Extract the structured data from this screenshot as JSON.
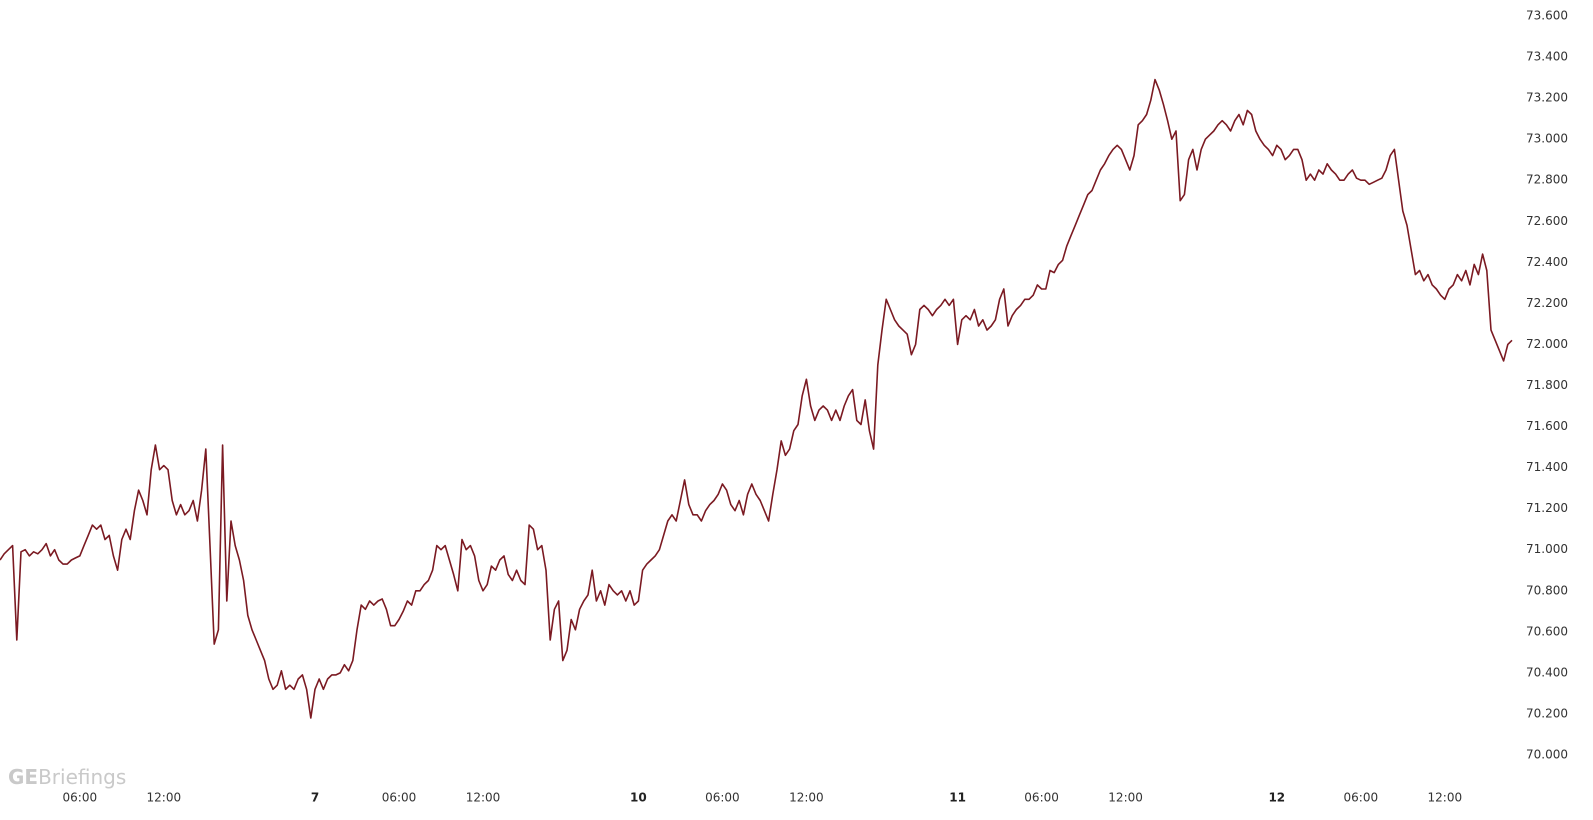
{
  "watermark": {
    "bold": "GE",
    "rest": "Briefings"
  },
  "chart_data": {
    "type": "line",
    "color": "#7b1a22",
    "grid": false,
    "ylim": [
      70,
      73.6
    ],
    "yticks": [
      {
        "value": 70,
        "label": "70.000"
      },
      {
        "value": 70.2,
        "label": "70.200"
      },
      {
        "value": 70.4,
        "label": "70.400"
      },
      {
        "value": 70.6,
        "label": "70.600"
      },
      {
        "value": 70.8,
        "label": "70.800"
      },
      {
        "value": 71,
        "label": "71.000"
      },
      {
        "value": 71.2,
        "label": "71.200"
      },
      {
        "value": 71.4,
        "label": "71.400"
      },
      {
        "value": 71.6,
        "label": "71.600"
      },
      {
        "value": 71.8,
        "label": "71.800"
      },
      {
        "value": 72,
        "label": "72.000"
      },
      {
        "value": 72.2,
        "label": "72.200"
      },
      {
        "value": 72.4,
        "label": "72.400"
      },
      {
        "value": 72.6,
        "label": "72.600"
      },
      {
        "value": 72.8,
        "label": "72.800"
      },
      {
        "value": 73,
        "label": "73.000"
      },
      {
        "value": 73.2,
        "label": "73.200"
      },
      {
        "value": 73.4,
        "label": "73.400"
      },
      {
        "value": 73.6,
        "label": "73.600"
      }
    ],
    "categories": [
      null,
      null,
      null,
      null,
      null,
      null,
      null,
      null,
      null,
      null,
      null,
      null,
      null,
      null,
      null,
      null,
      null,
      null,
      null,
      "06:00",
      null,
      null,
      null,
      null,
      null,
      null,
      null,
      null,
      null,
      null,
      null,
      null,
      null,
      null,
      null,
      null,
      null,
      null,
      null,
      "12:00",
      null,
      null,
      null,
      null,
      null,
      null,
      null,
      null,
      null,
      null,
      null,
      null,
      null,
      null,
      null,
      null,
      null,
      null,
      null,
      null,
      null,
      null,
      null,
      null,
      null,
      null,
      null,
      null,
      null,
      null,
      null,
      null,
      null,
      null,
      null,
      "7",
      null,
      null,
      null,
      null,
      null,
      null,
      null,
      null,
      null,
      null,
      null,
      null,
      null,
      null,
      null,
      null,
      null,
      null,
      null,
      "06:00",
      null,
      null,
      null,
      null,
      null,
      null,
      null,
      null,
      null,
      null,
      null,
      null,
      null,
      null,
      null,
      null,
      null,
      null,
      null,
      "12:00",
      null,
      null,
      null,
      null,
      null,
      null,
      null,
      null,
      null,
      null,
      null,
      null,
      null,
      null,
      null,
      null,
      null,
      null,
      null,
      null,
      null,
      null,
      null,
      null,
      null,
      null,
      null,
      null,
      null,
      null,
      null,
      null,
      null,
      null,
      null,
      null,
      "10",
      null,
      null,
      null,
      null,
      null,
      null,
      null,
      null,
      null,
      null,
      null,
      null,
      null,
      null,
      null,
      null,
      null,
      null,
      null,
      "06:00",
      null,
      null,
      null,
      null,
      null,
      null,
      null,
      null,
      null,
      null,
      null,
      null,
      null,
      null,
      null,
      null,
      null,
      null,
      null,
      "12:00",
      null,
      null,
      null,
      null,
      null,
      null,
      null,
      null,
      null,
      null,
      null,
      null,
      null,
      null,
      null,
      null,
      null,
      null,
      null,
      null,
      null,
      null,
      null,
      null,
      null,
      null,
      null,
      null,
      null,
      null,
      null,
      null,
      null,
      null,
      null,
      "11",
      null,
      null,
      null,
      null,
      null,
      null,
      null,
      null,
      null,
      null,
      null,
      null,
      null,
      null,
      null,
      null,
      null,
      null,
      null,
      "06:00",
      null,
      null,
      null,
      null,
      null,
      null,
      null,
      null,
      null,
      null,
      null,
      null,
      null,
      null,
      null,
      null,
      null,
      null,
      null,
      "12:00",
      null,
      null,
      null,
      null,
      null,
      null,
      null,
      null,
      null,
      null,
      null,
      null,
      null,
      null,
      null,
      null,
      null,
      null,
      null,
      null,
      null,
      null,
      null,
      null,
      null,
      null,
      null,
      null,
      null,
      null,
      null,
      null,
      null,
      null,
      null,
      "12",
      null,
      null,
      null,
      null,
      null,
      null,
      null,
      null,
      null,
      null,
      null,
      null,
      null,
      null,
      null,
      null,
      null,
      null,
      null,
      "06:00",
      null,
      null,
      null,
      null,
      null,
      null,
      null,
      null,
      null,
      null,
      null,
      null,
      null,
      null,
      null,
      null,
      null,
      null,
      null,
      "12:00",
      null,
      null,
      null,
      null,
      null,
      null,
      null,
      null,
      null,
      null,
      null,
      null,
      null,
      null,
      null,
      null
    ],
    "values": [
      70.95,
      70.98,
      71.0,
      71.02,
      70.56,
      70.99,
      71.0,
      70.97,
      70.99,
      70.98,
      71.0,
      71.03,
      70.97,
      71.0,
      70.95,
      70.93,
      70.93,
      70.95,
      70.96,
      70.97,
      71.02,
      71.07,
      71.12,
      71.1,
      71.12,
      71.05,
      71.07,
      70.97,
      70.9,
      71.05,
      71.1,
      71.05,
      71.19,
      71.29,
      71.24,
      71.17,
      71.39,
      71.51,
      71.39,
      71.41,
      71.39,
      71.24,
      71.17,
      71.22,
      71.17,
      71.19,
      71.24,
      71.14,
      71.29,
      71.49,
      71.02,
      70.54,
      70.61,
      71.51,
      70.75,
      71.14,
      71.02,
      70.95,
      70.85,
      70.68,
      70.61,
      70.56,
      70.51,
      70.46,
      70.37,
      70.32,
      70.34,
      70.41,
      70.32,
      70.34,
      70.32,
      70.37,
      70.39,
      70.32,
      70.18,
      70.32,
      70.37,
      70.32,
      70.37,
      70.39,
      70.39,
      70.4,
      70.44,
      70.41,
      70.46,
      70.61,
      70.73,
      70.71,
      70.75,
      70.73,
      70.75,
      70.76,
      70.71,
      70.63,
      70.63,
      70.66,
      70.7,
      70.75,
      70.73,
      70.8,
      70.8,
      70.83,
      70.85,
      70.9,
      71.02,
      71.0,
      71.02,
      70.95,
      70.88,
      70.8,
      71.05,
      71.0,
      71.02,
      70.97,
      70.85,
      70.8,
      70.83,
      70.92,
      70.9,
      70.95,
      70.97,
      70.88,
      70.85,
      70.9,
      70.85,
      70.83,
      71.12,
      71.1,
      71.0,
      71.02,
      70.9,
      70.56,
      70.71,
      70.75,
      70.46,
      70.51,
      70.66,
      70.61,
      70.71,
      70.75,
      70.78,
      70.9,
      70.75,
      70.8,
      70.73,
      70.83,
      70.8,
      70.78,
      70.8,
      70.75,
      70.8,
      70.73,
      70.75,
      70.9,
      70.93,
      70.95,
      70.97,
      71.0,
      71.07,
      71.14,
      71.17,
      71.14,
      71.24,
      71.34,
      71.22,
      71.17,
      71.17,
      71.14,
      71.19,
      71.22,
      71.24,
      71.27,
      71.32,
      71.29,
      71.22,
      71.19,
      71.24,
      71.17,
      71.27,
      71.32,
      71.27,
      71.24,
      71.19,
      71.14,
      71.27,
      71.39,
      71.53,
      71.46,
      71.49,
      71.58,
      71.61,
      71.75,
      71.83,
      71.7,
      71.63,
      71.68,
      71.7,
      71.68,
      71.63,
      71.68,
      71.63,
      71.7,
      71.75,
      71.78,
      71.63,
      71.61,
      71.73,
      71.58,
      71.49,
      71.9,
      72.07,
      72.22,
      72.17,
      72.12,
      72.09,
      72.07,
      72.05,
      71.95,
      72.0,
      72.17,
      72.19,
      72.17,
      72.14,
      72.17,
      72.19,
      72.22,
      72.19,
      72.22,
      72.0,
      72.12,
      72.14,
      72.12,
      72.17,
      72.09,
      72.12,
      72.07,
      72.09,
      72.12,
      72.22,
      72.27,
      72.09,
      72.14,
      72.17,
      72.19,
      72.22,
      72.22,
      72.24,
      72.29,
      72.27,
      72.27,
      72.36,
      72.35,
      72.39,
      72.41,
      72.48,
      72.53,
      72.58,
      72.63,
      72.68,
      72.73,
      72.75,
      72.8,
      72.85,
      72.88,
      72.92,
      72.95,
      72.97,
      72.95,
      72.9,
      72.85,
      72.92,
      73.07,
      73.09,
      73.12,
      73.19,
      73.29,
      73.24,
      73.17,
      73.09,
      73.0,
      73.04,
      72.7,
      72.73,
      72.9,
      72.95,
      72.85,
      72.95,
      73.0,
      73.02,
      73.04,
      73.07,
      73.09,
      73.07,
      73.04,
      73.09,
      73.12,
      73.07,
      73.14,
      73.12,
      73.04,
      73.0,
      72.97,
      72.95,
      72.92,
      72.97,
      72.95,
      72.9,
      72.92,
      72.95,
      72.95,
      72.9,
      72.8,
      72.83,
      72.8,
      72.85,
      72.83,
      72.88,
      72.85,
      72.83,
      72.8,
      72.8,
      72.83,
      72.85,
      72.81,
      72.8,
      72.8,
      72.78,
      72.79,
      72.8,
      72.81,
      72.85,
      72.92,
      72.95,
      72.8,
      72.65,
      72.58,
      72.46,
      72.34,
      72.36,
      72.31,
      72.34,
      72.29,
      72.27,
      72.24,
      72.22,
      72.27,
      72.29,
      72.34,
      72.31,
      72.36,
      72.29,
      72.39,
      72.34,
      72.44,
      72.36,
      72.07,
      72.02,
      71.97,
      71.92,
      72.0,
      72.02
    ]
  }
}
